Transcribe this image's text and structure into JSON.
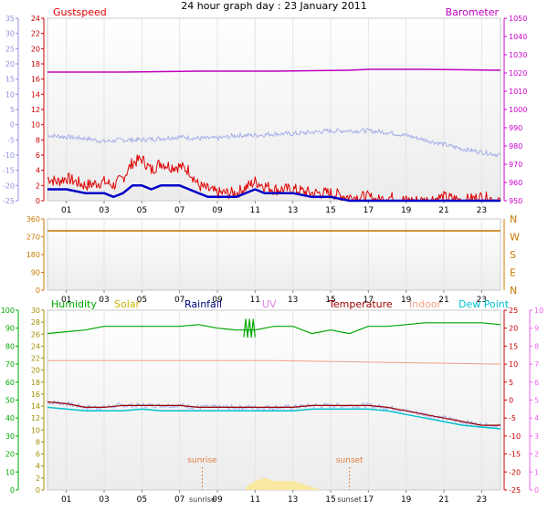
{
  "title": "24 hour graph day : 23 January 2011",
  "colors": {
    "gust": "#e00000",
    "wind": "#0000c8",
    "barometer": "#c000c0",
    "temp_trace": "#a8b0e8",
    "bearing": "#c87800",
    "humidity": "#00a800",
    "solar": "#c8b400",
    "rainfall": "#000080",
    "uv": "#e080e0",
    "temperature": "#a00000",
    "indoor": "#f0a088",
    "dewpoint": "#00c0d0",
    "left_axis_blue": "#9090e0",
    "left_axis_red": "#cc0000",
    "left_axis_green": "#00aa00",
    "left_axis_olive": "#a09000",
    "right_axis_magenta": "#cc00cc",
    "right_axis_red": "#cc0000",
    "right_axis_pink": "#ee60ee",
    "sun_marker": "#e08040",
    "solar_fill": "#f8e8a0"
  },
  "chart_data": [
    {
      "type": "line",
      "panel": "wind",
      "legend": {
        "left": "Gustspeed",
        "right": "Barometer"
      },
      "x_ticks": [
        "01",
        "03",
        "05",
        "07",
        "09",
        "11",
        "13",
        "15",
        "17",
        "19",
        "21",
        "23"
      ],
      "left_axis_blue": {
        "ticks": [
          "35",
          "30",
          "25",
          "20",
          "15",
          "10",
          "5",
          "0",
          "-5",
          "-10",
          "-15",
          "-20",
          "-25"
        ],
        "ylim": [
          -25,
          35
        ]
      },
      "left_axis_red": {
        "ticks": [
          "24",
          "22",
          "20",
          "18",
          "16",
          "14",
          "12",
          "10",
          "8",
          "6",
          "4",
          "2",
          "0"
        ],
        "ylim": [
          0,
          24
        ]
      },
      "right_axis": {
        "ticks": [
          "1050",
          "1040",
          "1030",
          "1020",
          "1010",
          "1000",
          "990",
          "980",
          "970",
          "960",
          "950"
        ],
        "ylim": [
          950,
          1050
        ]
      },
      "series": [
        {
          "name": "Barometer",
          "axis": "right",
          "x": [
            0,
            4,
            8,
            12,
            16,
            17,
            20,
            24
          ],
          "y": [
            1020.5,
            1020.5,
            1021,
            1021,
            1021.5,
            1022,
            1022,
            1021.5
          ]
        },
        {
          "axis": "left_blue",
          "x": [
            0,
            1,
            2,
            3,
            4,
            5,
            6,
            7,
            8,
            9,
            10,
            11,
            12,
            13,
            14,
            15,
            16,
            17,
            18,
            19,
            20,
            21,
            22,
            23,
            24
          ],
          "y": [
            -3.5,
            -4,
            -4.5,
            -5.5,
            -5,
            -5,
            -4.5,
            -4,
            -4.5,
            -4.5,
            -3.5,
            -3.5,
            -3,
            -3,
            -2.5,
            -2,
            -2,
            -2,
            -2.5,
            -3.5,
            -5,
            -6.5,
            -8,
            -9,
            -10
          ]
        },
        {
          "name": "Gustspeed",
          "axis": "left_red",
          "x": [
            0,
            0.5,
            1,
            2,
            3,
            3.5,
            4,
            4.5,
            5,
            5.5,
            6,
            6.5,
            7,
            7.5,
            8,
            8.5,
            9,
            10,
            11,
            11.5,
            12,
            13,
            14,
            15,
            16,
            17,
            17.5,
            18,
            19,
            20,
            21,
            22,
            23,
            24
          ],
          "y": [
            3,
            2.5,
            3,
            2,
            2.5,
            2,
            3,
            5,
            5.5,
            4,
            5,
            4.5,
            4.5,
            4,
            2,
            1.5,
            1,
            1,
            2.5,
            2,
            1.5,
            1.5,
            1,
            1,
            0.5,
            0.5,
            0,
            0.5,
            0,
            0,
            0.5,
            0,
            0.5,
            0
          ]
        },
        {
          "axis": "left_red",
          "x": [
            0,
            0.5,
            1,
            2,
            3,
            3.5,
            4,
            4.5,
            5,
            5.5,
            6,
            6.5,
            7,
            7.5,
            8,
            8.5,
            9,
            10,
            11,
            11.5,
            12,
            13,
            14,
            15,
            16,
            17,
            17.5,
            18,
            19,
            20,
            21,
            22,
            23,
            24
          ],
          "y": [
            1.5,
            1.5,
            1.5,
            1,
            1,
            0.5,
            1,
            2,
            2,
            1.5,
            2,
            2,
            2,
            1.5,
            1,
            0.5,
            0.5,
            0.5,
            1.5,
            1,
            1,
            1,
            0.5,
            0.5,
            0,
            0,
            0,
            0,
            0,
            0,
            0,
            0,
            0,
            0
          ]
        }
      ]
    },
    {
      "type": "line",
      "panel": "direction",
      "left_ticks": [
        "360",
        "270",
        "180",
        "90",
        "0"
      ],
      "right_labels": [
        "N",
        "W",
        "S",
        "E",
        "N"
      ],
      "ylim": [
        0,
        360
      ],
      "x_ticks": [
        "01",
        "03",
        "05",
        "07",
        "09",
        "11",
        "13",
        "15",
        "17",
        "19",
        "21",
        "23"
      ],
      "series": [
        {
          "name": "Bearing",
          "x": [
            0,
            24
          ],
          "y": [
            300,
            300
          ]
        }
      ]
    },
    {
      "type": "line",
      "panel": "temperature",
      "legend": [
        "Humidity",
        "Solar",
        "Rainfall",
        "UV",
        "Temperature",
        "Indoor",
        "Dew Point"
      ],
      "x_ticks": [
        "01",
        "03",
        "05",
        "07",
        "09",
        "11",
        "13",
        "15",
        "17",
        "19",
        "21",
        "23"
      ],
      "markers": {
        "sunrise": "sunrise",
        "sunset": "sunset"
      },
      "left_axis_green": {
        "ticks": [
          "100",
          "90",
          "80",
          "70",
          "60",
          "50",
          "40",
          "30",
          "20",
          "10",
          "0"
        ],
        "ylim": [
          0,
          100
        ]
      },
      "left_axis_olive": {
        "ticks": [
          "30",
          "28",
          "26",
          "24",
          "22",
          "20",
          "18",
          "16",
          "14",
          "12",
          "10",
          "8",
          "6",
          "4",
          "2",
          "0"
        ],
        "ylim": [
          0,
          30
        ]
      },
      "right_axis_red": {
        "ticks": [
          "25",
          "20",
          "15",
          "10",
          "5",
          "0",
          "-5",
          "-10",
          "-15",
          "-20",
          "-25"
        ],
        "ylim": [
          -25,
          25
        ]
      },
      "right_axis_pink": {
        "ticks": [
          "10",
          "9",
          "8",
          "7",
          "6",
          "5",
          "4",
          "3",
          "2",
          "1",
          "0"
        ],
        "ylim": [
          0,
          10
        ]
      },
      "series": [
        {
          "name": "Humidity",
          "axis": "left_green",
          "x": [
            0,
            1,
            2,
            3,
            4,
            5,
            6,
            7,
            8,
            9,
            10,
            11,
            12,
            13,
            14,
            15,
            16,
            17,
            18,
            19,
            20,
            21,
            22,
            23,
            24
          ],
          "y": [
            87,
            88,
            89,
            91,
            91,
            91,
            91,
            91,
            92,
            90,
            89,
            89,
            91,
            91,
            87,
            89,
            87,
            91,
            91,
            92,
            93,
            93,
            93,
            93,
            92
          ]
        },
        {
          "name": "Indoor",
          "axis": "right_red",
          "x": [
            0,
            12,
            24
          ],
          "y": [
            11,
            11,
            10
          ]
        },
        {
          "name": "Temperature",
          "axis": "right_red",
          "x": [
            0,
            1,
            2,
            3,
            4,
            5,
            6,
            7,
            8,
            9,
            10,
            11,
            12,
            13,
            14,
            15,
            16,
            17,
            18,
            19,
            20,
            21,
            22,
            23,
            24
          ],
          "y": [
            -0.5,
            -1,
            -2,
            -2,
            -1.5,
            -1.5,
            -1.5,
            -1.5,
            -2,
            -2,
            -2,
            -2,
            -2,
            -2,
            -1.5,
            -1.5,
            -1.5,
            -1.5,
            -2,
            -3,
            -4,
            -5,
            -6,
            -7,
            -7
          ]
        },
        {
          "name": "Dew Point",
          "axis": "right_red",
          "x": [
            0,
            1,
            2,
            3,
            4,
            5,
            6,
            7,
            8,
            9,
            10,
            11,
            12,
            13,
            14,
            15,
            16,
            17,
            18,
            19,
            20,
            21,
            22,
            23,
            24
          ],
          "y": [
            -2,
            -2.5,
            -3,
            -3,
            -3,
            -2.5,
            -3,
            -3,
            -3,
            -3,
            -3,
            -3,
            -3,
            -3,
            -2.5,
            -2.5,
            -2.5,
            -2.5,
            -3,
            -4,
            -5,
            -6,
            -7,
            -7.5,
            -8
          ]
        },
        {
          "name": "Solar",
          "axis": "left_olive",
          "x": [
            10.5,
            11,
            11.5,
            12,
            12.5,
            13,
            13.5,
            14,
            14.5
          ],
          "y": [
            0.5,
            1.5,
            2,
            1.5,
            1.5,
            1.5,
            1,
            0.5,
            0
          ]
        },
        {
          "name": "UV",
          "axis": "right_pink",
          "x": [
            10.4,
            10.5,
            10.6,
            10.7,
            10.8,
            10.9,
            11
          ],
          "y": [
            8.5,
            9.5,
            8.5,
            9.5,
            8.5,
            9.5,
            8.5
          ]
        }
      ]
    }
  ]
}
